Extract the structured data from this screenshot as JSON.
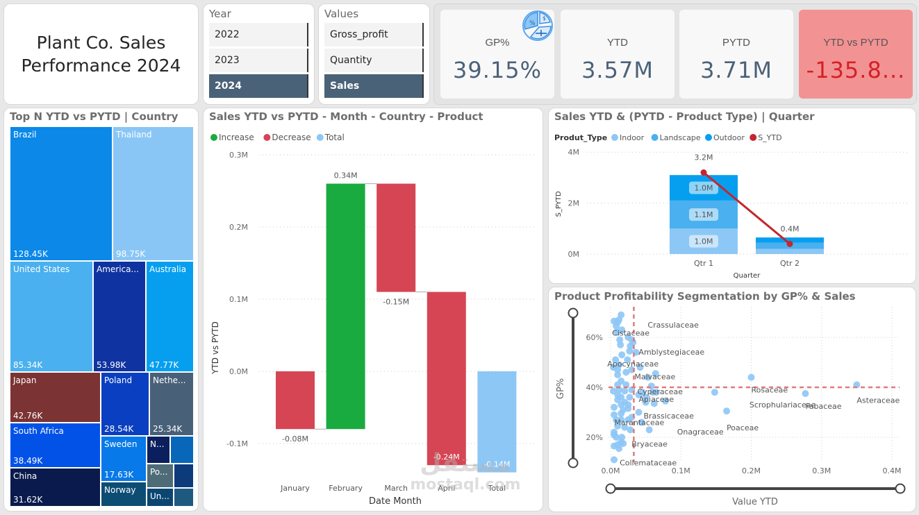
{
  "header": {
    "title_line1": "Plant Co. Sales",
    "title_line2": "Performance 2024"
  },
  "year_slicer": {
    "label": "Year",
    "options": [
      "2022",
      "2023",
      "2024"
    ],
    "selected": "2024"
  },
  "values_slicer": {
    "label": "Values",
    "options": [
      "Gross_profit",
      "Quantity",
      "Sales"
    ],
    "selected": "Sales"
  },
  "kpis": [
    {
      "label": "GP%",
      "value": "39.15%",
      "icon": "finance-percent-icon"
    },
    {
      "label": "YTD",
      "value": "3.57M"
    },
    {
      "label": "PYTD",
      "value": "3.71M"
    },
    {
      "label": "YTD vs PYTD",
      "value": "-135.8...",
      "status": "negative"
    }
  ],
  "colors": {
    "accent": "#4a6278",
    "increase": "#1aab40",
    "decrease": "#d64554",
    "total": "#8dc7f6",
    "negative_kpi_bg": "#f39293",
    "negative_kpi_text": "#d42027",
    "line": "#c4262e"
  },
  "treemap": {
    "title": "Top N YTD vs PYTD | Country",
    "items": [
      {
        "name": "Brazil",
        "value": "128.45K",
        "color": "#0b88e8"
      },
      {
        "name": "Thailand",
        "value": "98.75K",
        "color": "#8ac6f5"
      },
      {
        "name": "United States",
        "value": "85.34K",
        "color": "#4ab0ef"
      },
      {
        "name": "America...",
        "value": "53.98K",
        "color": "#0f33a0"
      },
      {
        "name": "Australia",
        "value": "47.77K",
        "color": "#069ff0"
      },
      {
        "name": "Japan",
        "value": "42.76K",
        "color": "#7b3333"
      },
      {
        "name": "Poland",
        "value": "28.54K",
        "color": "#0a3fc1"
      },
      {
        "name": "Nethe...",
        "value": "25.34K",
        "color": "#486078"
      },
      {
        "name": "South Africa",
        "value": "38.49K",
        "color": "#0352e8"
      },
      {
        "name": "Sweden",
        "value": "17.63K",
        "color": "#0779e8"
      },
      {
        "name": "N...",
        "value": "",
        "color": "#0b1f5e"
      },
      {
        "name": "",
        "value": "",
        "color": "#0867b8"
      },
      {
        "name": "China",
        "value": "31.62K",
        "color": "#0a1a4c"
      },
      {
        "name": "Norway",
        "value": "",
        "color": "#0d4d74"
      },
      {
        "name": "Po...",
        "value": "",
        "color": "#4e6c78"
      },
      {
        "name": "",
        "value": "",
        "color": "#0d3a7a"
      },
      {
        "name": "Un...",
        "value": "",
        "color": "#0b4670"
      },
      {
        "name": "",
        "value": "",
        "color": "#1e5a80"
      }
    ]
  },
  "chart_data": [
    {
      "type": "bar",
      "subtype": "waterfall",
      "title": "Sales YTD vs PYTD - Month - Country - Product",
      "legend": [
        "Increase",
        "Decrease",
        "Total"
      ],
      "legend_position": "top-left",
      "xlabel": "Date Month",
      "ylabel": "YTD vs PYTD",
      "categories": [
        "January",
        "February",
        "March",
        "April",
        "Total"
      ],
      "values": [
        -0.08,
        0.34,
        -0.15,
        -0.24,
        -0.14
      ],
      "data_labels": [
        "-0.08M",
        "0.34M",
        "-0.15M",
        "-0.24M",
        "-0.14M"
      ],
      "kinds": [
        "Decrease",
        "Increase",
        "Decrease",
        "Decrease",
        "Total"
      ],
      "yticks": [
        "0.3M",
        "0.2M",
        "0.1M",
        "0.0M",
        "-0.1M"
      ],
      "ylim": [
        -0.14,
        0.3
      ],
      "grid": true
    },
    {
      "type": "bar",
      "subtype": "stacked-column-with-line",
      "title": "Sales YTD & (PYTD - Product Type) | Quarter",
      "legend_title": "Produt_Type",
      "legend": [
        "Indoor",
        "Landscape",
        "Outdoor",
        "S_YTD"
      ],
      "legend_position": "top-left",
      "xlabel": "Quarter",
      "ylabel": "S_PYTD",
      "categories": [
        "Qtr 1",
        "Qtr 2"
      ],
      "series": [
        {
          "name": "Indoor",
          "values": [
            1.0,
            0.2
          ],
          "labels": [
            "1.0M",
            ""
          ],
          "color": "#8dc7f6"
        },
        {
          "name": "Landscape",
          "values": [
            1.1,
            0.25
          ],
          "labels": [
            "1.1M",
            ""
          ],
          "color": "#4ab0ef"
        },
        {
          "name": "Outdoor",
          "values": [
            1.0,
            0.2
          ],
          "labels": [
            "1.0M",
            ""
          ],
          "color": "#069ff0"
        }
      ],
      "line": {
        "name": "S_YTD",
        "values": [
          3.2,
          0.4
        ],
        "labels": [
          "3.2M",
          "0.4M"
        ],
        "color": "#c4262e"
      },
      "yticks": [
        "4M",
        "2M",
        "0M"
      ],
      "ylim": [
        0,
        4
      ],
      "grid": true
    },
    {
      "type": "scatter",
      "title": "Product Profitability Segmentation by GP% & Sales",
      "xlabel": "Value YTD",
      "ylabel": "GP%",
      "xticks": [
        "0.0M",
        "0.1M",
        "0.2M",
        "0.3M",
        "0.4M"
      ],
      "yticks": [
        "60%",
        "40%",
        "20%"
      ],
      "xlim": [
        0,
        0.4
      ],
      "ylim": [
        0.1,
        0.7
      ],
      "reference_lines": {
        "x": 0.033,
        "y": 0.4
      },
      "labeled_points": [
        {
          "label": "Crassulaceae",
          "x": 0.033,
          "y": 0.65
        },
        {
          "label": "Cistaceae",
          "x": 0.01,
          "y": 0.64
        },
        {
          "label": "Amblystegiaceae",
          "x": 0.034,
          "y": 0.55
        },
        {
          "label": "Apocynaceae",
          "x": 0.02,
          "y": 0.5
        },
        {
          "label": "Malvaceae",
          "x": 0.03,
          "y": 0.46
        },
        {
          "label": "Cyperaceae",
          "x": 0.036,
          "y": 0.4
        },
        {
          "label": "Rosaceae",
          "x": 0.2,
          "y": 0.44
        },
        {
          "label": "Asteraceae",
          "x": 0.35,
          "y": 0.41
        },
        {
          "label": "Apiaceae",
          "x": 0.04,
          "y": 0.38
        },
        {
          "label": "Scrophulariaceae",
          "x": 0.148,
          "y": 0.38
        },
        {
          "label": "Fabaceae",
          "x": 0.277,
          "y": 0.38
        },
        {
          "label": "Brassicaceae",
          "x": 0.037,
          "y": 0.3
        },
        {
          "label": "Poaceae",
          "x": 0.165,
          "y": 0.3
        },
        {
          "label": "Marantaceae",
          "x": 0.03,
          "y": 0.26
        },
        {
          "label": "Onagraceae",
          "x": 0.055,
          "y": 0.23
        },
        {
          "label": "Bryaceae",
          "x": 0.02,
          "y": 0.19
        },
        {
          "label": "Collemataceae",
          "x": 0.005,
          "y": 0.11
        }
      ],
      "points": [
        [
          0.015,
          0.69
        ],
        [
          0.005,
          0.665
        ],
        [
          0.01,
          0.66
        ],
        [
          0.008,
          0.645
        ],
        [
          0.012,
          0.67
        ],
        [
          0.009,
          0.62
        ],
        [
          0.016,
          0.63
        ],
        [
          0.013,
          0.59
        ],
        [
          0.014,
          0.57
        ],
        [
          0.025,
          0.6
        ],
        [
          0.03,
          0.59
        ],
        [
          0.028,
          0.565
        ],
        [
          0.032,
          0.58
        ],
        [
          0.027,
          0.545
        ],
        [
          0.036,
          0.54
        ],
        [
          0.016,
          0.53
        ],
        [
          0.007,
          0.51
        ],
        [
          0.012,
          0.49
        ],
        [
          0.024,
          0.51
        ],
        [
          0.004,
          0.48
        ],
        [
          0.01,
          0.47
        ],
        [
          0.022,
          0.46
        ],
        [
          0.03,
          0.47
        ],
        [
          0.042,
          0.48
        ],
        [
          0.064,
          0.455
        ],
        [
          0.01,
          0.45
        ],
        [
          0.015,
          0.425
        ],
        [
          0.053,
          0.44
        ],
        [
          0.01,
          0.41
        ],
        [
          0.022,
          0.41
        ],
        [
          0.058,
          0.405
        ],
        [
          0.004,
          0.385
        ],
        [
          0.012,
          0.39
        ],
        [
          0.02,
          0.385
        ],
        [
          0.03,
          0.39
        ],
        [
          0.045,
          0.38
        ],
        [
          0.06,
          0.38
        ],
        [
          0.065,
          0.38
        ],
        [
          0.01,
          0.37
        ],
        [
          0.015,
          0.36
        ],
        [
          0.027,
          0.36
        ],
        [
          0.04,
          0.37
        ],
        [
          0.05,
          0.36
        ],
        [
          0.01,
          0.35
        ],
        [
          0.02,
          0.34
        ],
        [
          0.05,
          0.34
        ],
        [
          0.062,
          0.335
        ],
        [
          0.078,
          0.345
        ],
        [
          0.015,
          0.33
        ],
        [
          0.025,
          0.33
        ],
        [
          0.005,
          0.32
        ],
        [
          0.025,
          0.315
        ],
        [
          0.018,
          0.31
        ],
        [
          0.015,
          0.295
        ],
        [
          0.005,
          0.29
        ],
        [
          0.04,
          0.3
        ],
        [
          0.03,
          0.28
        ],
        [
          0.008,
          0.27
        ],
        [
          0.015,
          0.27
        ],
        [
          0.025,
          0.27
        ],
        [
          0.044,
          0.26
        ],
        [
          0.01,
          0.245
        ],
        [
          0.02,
          0.24
        ],
        [
          0.028,
          0.23
        ],
        [
          0.055,
          0.23
        ],
        [
          0.005,
          0.22
        ],
        [
          0.005,
          0.21
        ],
        [
          0.008,
          0.2
        ],
        [
          0.016,
          0.2
        ],
        [
          0.015,
          0.18
        ],
        [
          0.018,
          0.175
        ],
        [
          0.01,
          0.17
        ],
        [
          0.005,
          0.165
        ],
        [
          0.012,
          0.155
        ],
        [
          0.005,
          0.11
        ],
        [
          0.148,
          0.38
        ],
        [
          0.165,
          0.305
        ],
        [
          0.2,
          0.44
        ],
        [
          0.277,
          0.375
        ],
        [
          0.35,
          0.41
        ]
      ],
      "point_color": "#8dc7f6",
      "ref_line_color": "#e07a7c"
    }
  ],
  "watermark": {
    "arabic": "مستقل",
    "latin": "mostaql.com"
  }
}
